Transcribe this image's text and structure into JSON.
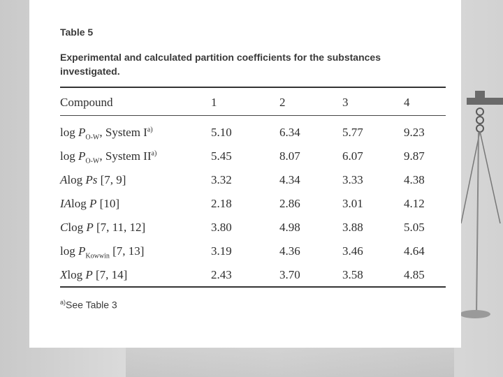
{
  "table": {
    "title": "Table 5",
    "caption_line1": "Experimental and calculated partition coefficients for the substances",
    "caption_line2": "investigated.",
    "headers": [
      "Compound",
      "1",
      "2",
      "3",
      "4"
    ],
    "rows": [
      {
        "prefix": "",
        "main": "log ",
        "var": "P",
        "sub": "O-W",
        "after": ", System I",
        "sup": "a)",
        "values": [
          "5.10",
          "6.34",
          "5.77",
          "9.23"
        ]
      },
      {
        "prefix": "",
        "main": "log ",
        "var": "P",
        "sub": "O-W",
        "after": ", System II",
        "sup": "a)",
        "values": [
          "5.45",
          "8.07",
          "6.07",
          "9.87"
        ]
      },
      {
        "prefix": "A",
        "main": "log ",
        "var": "Ps",
        "sub": "",
        "after": " [7, 9]",
        "sup": "",
        "values": [
          "3.32",
          "4.34",
          "3.33",
          "4.38"
        ]
      },
      {
        "prefix": "IA",
        "main": "log ",
        "var": "P",
        "sub": "",
        "after": " [10]",
        "sup": "",
        "values": [
          "2.18",
          "2.86",
          "3.01",
          "4.12"
        ]
      },
      {
        "prefix": "C",
        "main": "log ",
        "var": "P",
        "sub": "",
        "after": " [7, 11, 12]",
        "sup": "",
        "values": [
          "3.80",
          "4.98",
          "3.88",
          "5.05"
        ]
      },
      {
        "prefix": "",
        "main": "log ",
        "var": "P",
        "sub": "Kowwin",
        "after": " [7, 13]",
        "sup": "",
        "values": [
          "3.19",
          "4.36",
          "3.46",
          "4.64"
        ]
      },
      {
        "prefix": "X",
        "main": "log ",
        "var": "P",
        "sub": "",
        "after": " [7, 14]",
        "sup": "",
        "values": [
          "2.43",
          "3.70",
          "3.58",
          "4.85"
        ]
      }
    ],
    "footnote_mark": "a)",
    "footnote_text": "See Table 3"
  }
}
